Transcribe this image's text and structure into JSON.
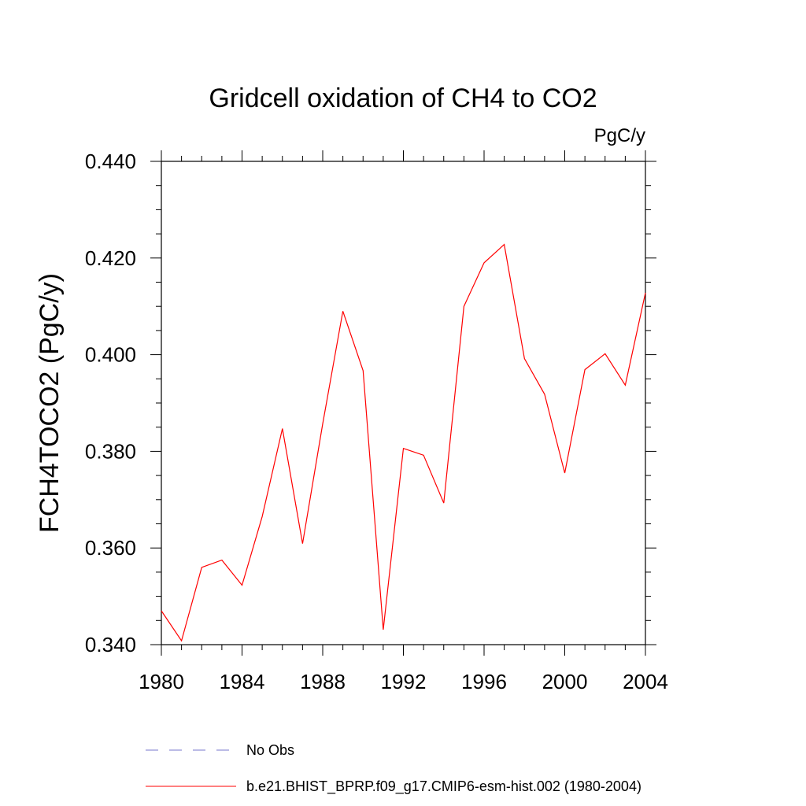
{
  "chart_data": {
    "type": "line",
    "title": "Gridcell oxidation of CH4 to CO2",
    "units_label": "PgC/y",
    "xlabel": "",
    "ylabel": "FCH4TOCO2  (PgC/y)",
    "xlim": [
      1980,
      2004
    ],
    "ylim": [
      0.34,
      0.44
    ],
    "x_ticks": [
      1980,
      1984,
      1988,
      1992,
      1996,
      2000,
      2004
    ],
    "x_tick_labels": [
      "1980",
      "1984",
      "1988",
      "1992",
      "1996",
      "2000",
      "2004"
    ],
    "y_ticks": [
      0.34,
      0.36,
      0.38,
      0.4,
      0.42,
      0.44
    ],
    "y_tick_labels": [
      "0.340",
      "0.360",
      "0.380",
      "0.400",
      "0.420",
      "0.440"
    ],
    "grid": false,
    "legend_position": "bottom",
    "series": [
      {
        "name": "No Obs",
        "color": "#7777cc",
        "style": "dashed",
        "values": []
      },
      {
        "name": "b.e21.BHIST_BPRP.f09_g17.CMIP6-esm-hist.002 (1980-2004)",
        "color": "#ff0000",
        "style": "solid",
        "x": [
          1980,
          1981,
          1982,
          1983,
          1984,
          1985,
          1986,
          1987,
          1988,
          1989,
          1990,
          1991,
          1992,
          1993,
          1994,
          1995,
          1996,
          1997,
          1998,
          1999,
          2000,
          2001,
          2002,
          2003,
          2004
        ],
        "values": [
          0.347,
          0.3408,
          0.356,
          0.3575,
          0.3523,
          0.3665,
          0.3847,
          0.3609,
          0.3857,
          0.409,
          0.3967,
          0.3431,
          0.3806,
          0.3792,
          0.3693,
          0.41,
          0.419,
          0.4228,
          0.3992,
          0.3918,
          0.3755,
          0.3969,
          0.4002,
          0.3937,
          0.4128
        ]
      }
    ]
  }
}
